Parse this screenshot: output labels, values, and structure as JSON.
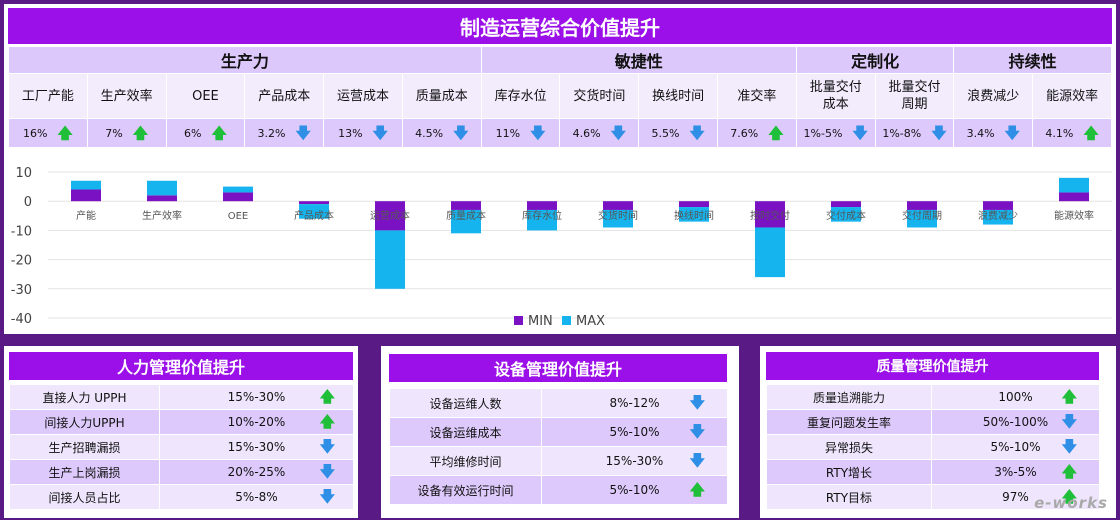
{
  "title": "制造运营综合价值提升",
  "groups": [
    {
      "name": "生产力",
      "span": 6
    },
    {
      "name": "敏捷性",
      "span": 4
    },
    {
      "name": "定制化",
      "span": 2
    },
    {
      "name": "持续性",
      "span": 2
    }
  ],
  "metrics": [
    {
      "name": "工厂产能",
      "value": "16%",
      "dir": "up"
    },
    {
      "name": "生产效率",
      "value": "7%",
      "dir": "up"
    },
    {
      "name": "OEE",
      "value": "6%",
      "dir": "up"
    },
    {
      "name": "产品成本",
      "value": "3.2%",
      "dir": "down"
    },
    {
      "name": "运营成本",
      "value": "13%",
      "dir": "down"
    },
    {
      "name": "质量成本",
      "value": "4.5%",
      "dir": "down"
    },
    {
      "name": "库存水位",
      "value": "11%",
      "dir": "down"
    },
    {
      "name": "交货时间",
      "value": "4.6%",
      "dir": "down"
    },
    {
      "name": "换线时间",
      "value": "5.5%",
      "dir": "down"
    },
    {
      "name": "准交率",
      "value": "7.6%",
      "dir": "up"
    },
    {
      "name": "批量交付成本",
      "value": "1%-5%",
      "dir": "down"
    },
    {
      "name": "批量交付周期",
      "value": "1%-8%",
      "dir": "down"
    },
    {
      "name": "浪费减少",
      "value": "3.4%",
      "dir": "down"
    },
    {
      "name": "能源效率",
      "value": "4.1%",
      "dir": "up"
    }
  ],
  "chart_data": {
    "type": "bar",
    "stacked": true,
    "categories": [
      "产能",
      "生产效率",
      "OEE",
      "产品成本",
      "运营成本",
      "质量成本",
      "库存水位",
      "交货时间",
      "换线时间",
      "按时交付",
      "交付成本",
      "交付周期",
      "浪费减少",
      "能源效率"
    ],
    "series": [
      {
        "name": "MIN",
        "color": "#7a12c4",
        "values": [
          4,
          2,
          3,
          -1,
          -10,
          -3,
          -3,
          -3,
          -2,
          -9,
          -2,
          -3,
          -3,
          3
        ]
      },
      {
        "name": "MAX",
        "color": "#16b4ee",
        "values": [
          3,
          5,
          2,
          -5,
          -20,
          -8,
          -7,
          -6,
          -5,
          -17,
          -5,
          -6,
          -5,
          5
        ]
      }
    ],
    "yticks": [
      "10",
      "0",
      "-10",
      "-20",
      "-30",
      "-40"
    ],
    "ylim": [
      -40,
      10
    ],
    "legend": "bottom-center"
  },
  "panels": [
    {
      "title": "人力管理价值提升",
      "rows": [
        {
          "name": "直接人力 UPPH",
          "value": "15%-30%",
          "dir": "up"
        },
        {
          "name": "间接人力UPPH",
          "value": "10%-20%",
          "dir": "up"
        },
        {
          "name": "生产招聘漏损",
          "value": "15%-30%",
          "dir": "down"
        },
        {
          "name": "生产上岗漏损",
          "value": "20%-25%",
          "dir": "down"
        },
        {
          "name": "间接人员占比",
          "value": "5%-8%",
          "dir": "down"
        }
      ]
    },
    {
      "title": "设备管理价值提升",
      "rows": [
        {
          "name": "设备运维人数",
          "value": "8%-12%",
          "dir": "down"
        },
        {
          "name": "设备运维成本",
          "value": "5%-10%",
          "dir": "down"
        },
        {
          "name": "平均维修时间",
          "value": "15%-30%",
          "dir": "down"
        },
        {
          "name": "设备有效运行时间",
          "value": "5%-10%",
          "dir": "up"
        }
      ]
    },
    {
      "title": "质量管理价值提升",
      "rows": [
        {
          "name": "质量追溯能力",
          "value": "100%",
          "dir": "up"
        },
        {
          "name": "重复问题发生率",
          "value": "50%-100%",
          "dir": "down"
        },
        {
          "name": "异常损失",
          "value": "5%-10%",
          "dir": "down"
        },
        {
          "name": "RTY增长",
          "value": "3%-5%",
          "dir": "up"
        },
        {
          "name": "RTY目标",
          "value": "97%",
          "dir": "up"
        }
      ]
    }
  ],
  "watermark": "e-works",
  "arrows": {
    "up": "🡅",
    "down": "🡇"
  }
}
